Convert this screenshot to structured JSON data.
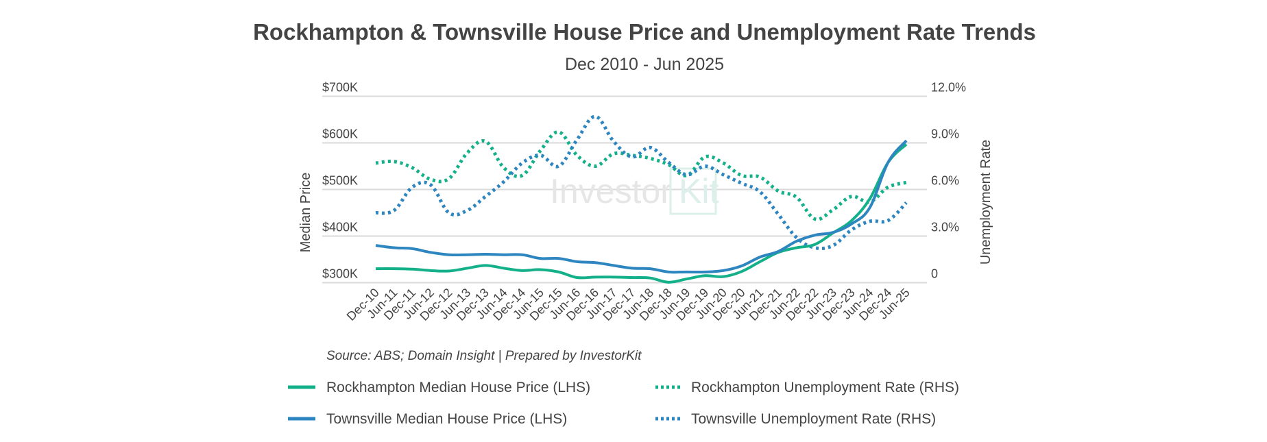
{
  "chart_data": {
    "type": "line",
    "title": "Rockhampton & Townsville House Price and Unemployment Rate Trends",
    "subtitle": "Dec 2010 - Jun 2025",
    "source": "Source: ABS; Domain Insight | Prepared by InvestorKit",
    "watermark": "InvestorKit",
    "ylabel_left": "Median Price",
    "ylabel_right": "Unemployment Rate",
    "ylim_left": [
      300,
      700
    ],
    "ylim_right": [
      0,
      12
    ],
    "yticks_left": [
      "$300K",
      "$400K",
      "$500K",
      "$600K",
      "$700K"
    ],
    "yticks_right": [
      "0",
      "3.0%",
      "6.0%",
      "9.0%",
      "12.0%"
    ],
    "grid": true,
    "legend_placement": "bottom",
    "categories": [
      "Dec-10",
      "Jun-11",
      "Dec-11",
      "Jun-12",
      "Dec-12",
      "Jun-13",
      "Dec-13",
      "Jun-14",
      "Dec-14",
      "Jun-15",
      "Dec-15",
      "Jun-16",
      "Dec-16",
      "Jun-17",
      "Dec-17",
      "Jun-18",
      "Dec-18",
      "Jun-19",
      "Dec-19",
      "Jun-20",
      "Dec-20",
      "Jun-21",
      "Dec-21",
      "Jun-22",
      "Dec-22",
      "Jun-23",
      "Dec-23",
      "Jun-24",
      "Dec-24",
      "Jun-25"
    ],
    "series": [
      {
        "name": "Rockhampton Median House Price (LHS)",
        "axis": "left",
        "style": "solid",
        "color": "#14b08a",
        "values": [
          330,
          330,
          329,
          326,
          325,
          331,
          337,
          331,
          326,
          328,
          323,
          311,
          312,
          312,
          311,
          310,
          301,
          308,
          315,
          313,
          324,
          345,
          365,
          375,
          382,
          407,
          433,
          480,
          558,
          597
        ]
      },
      {
        "name": "Townsville Median House Price (LHS)",
        "axis": "left",
        "style": "solid",
        "color": "#2e86c1",
        "values": [
          380,
          375,
          373,
          365,
          360,
          360,
          361,
          360,
          360,
          352,
          352,
          345,
          343,
          337,
          331,
          330,
          323,
          323,
          323,
          326,
          336,
          355,
          367,
          389,
          402,
          408,
          426,
          461,
          558,
          605
        ]
      },
      {
        "name": "Rockhampton Unemployment Rate (RHS)",
        "axis": "right",
        "style": "dotted",
        "color": "#14b08a",
        "values": [
          7.7,
          7.8,
          7.4,
          6.65,
          6.7,
          8.35,
          9.1,
          7.4,
          6.9,
          8.5,
          9.7,
          8.2,
          7.5,
          8.3,
          8.2,
          8.0,
          7.6,
          6.9,
          8.1,
          7.7,
          6.9,
          6.8,
          5.9,
          5.5,
          4.1,
          4.7,
          5.55,
          5.2,
          6.15,
          6.45
        ]
      },
      {
        "name": "Townsville Unemployment Rate (RHS)",
        "axis": "right",
        "style": "dotted",
        "color": "#2e86c1",
        "values": [
          4.5,
          4.65,
          6.15,
          6.3,
          4.5,
          4.65,
          5.55,
          6.5,
          7.7,
          8.2,
          7.5,
          9.2,
          10.7,
          9.1,
          8.1,
          8.7,
          7.75,
          6.95,
          7.5,
          6.95,
          6.4,
          5.85,
          4.4,
          2.9,
          2.25,
          2.4,
          3.4,
          3.95,
          4.0,
          5.15
        ]
      }
    ]
  }
}
